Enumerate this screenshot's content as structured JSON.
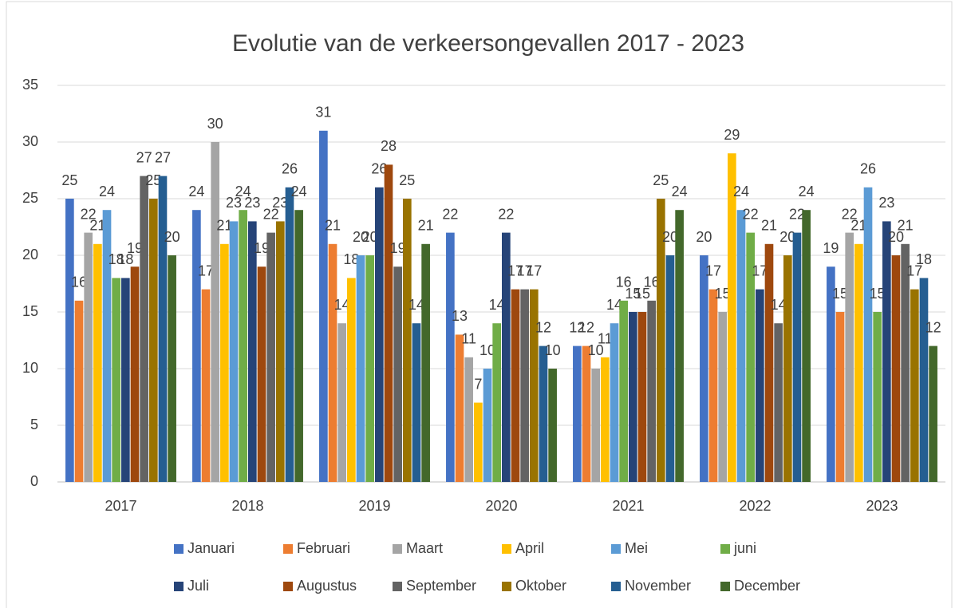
{
  "chart_data": {
    "type": "bar",
    "title": "Evolutie van de verkeersongevallen 2017 - 2023",
    "categories": [
      "2017",
      "2018",
      "2019",
      "2020",
      "2021",
      "2022",
      "2023"
    ],
    "series": [
      {
        "name": "Januari",
        "color": "#4472c4",
        "values": [
          25,
          24,
          31,
          22,
          12,
          20,
          19
        ]
      },
      {
        "name": "Februari",
        "color": "#ed7d31",
        "values": [
          16,
          17,
          21,
          13,
          12,
          17,
          15
        ]
      },
      {
        "name": "Maart",
        "color": "#a5a5a5",
        "values": [
          22,
          30,
          14,
          11,
          10,
          15,
          22
        ]
      },
      {
        "name": "April",
        "color": "#ffc000",
        "values": [
          21,
          21,
          18,
          7,
          11,
          29,
          21
        ]
      },
      {
        "name": "Mei",
        "color": "#5b9bd5",
        "values": [
          24,
          23,
          20,
          10,
          14,
          24,
          26
        ]
      },
      {
        "name": "juni",
        "color": "#70ad47",
        "values": [
          18,
          24,
          20,
          14,
          16,
          22,
          15
        ]
      },
      {
        "name": "Juli",
        "color": "#264478",
        "values": [
          18,
          23,
          26,
          22,
          15,
          17,
          23
        ]
      },
      {
        "name": "Augustus",
        "color": "#9e480e",
        "values": [
          19,
          19,
          28,
          17,
          15,
          21,
          20
        ]
      },
      {
        "name": "September",
        "color": "#636363",
        "values": [
          27,
          22,
          19,
          17,
          16,
          14,
          21
        ]
      },
      {
        "name": "Oktober",
        "color": "#997300",
        "values": [
          25,
          23,
          25,
          17,
          25,
          20,
          17
        ]
      },
      {
        "name": "November",
        "color": "#255e91",
        "values": [
          27,
          26,
          14,
          12,
          20,
          22,
          18
        ]
      },
      {
        "name": "December",
        "color": "#43682b",
        "values": [
          20,
          24,
          21,
          10,
          24,
          24,
          12
        ]
      }
    ],
    "ylim": [
      0,
      35
    ],
    "yticks": [
      0,
      5,
      10,
      15,
      20,
      25,
      30,
      35
    ],
    "grid": true,
    "legend": "bottom"
  }
}
